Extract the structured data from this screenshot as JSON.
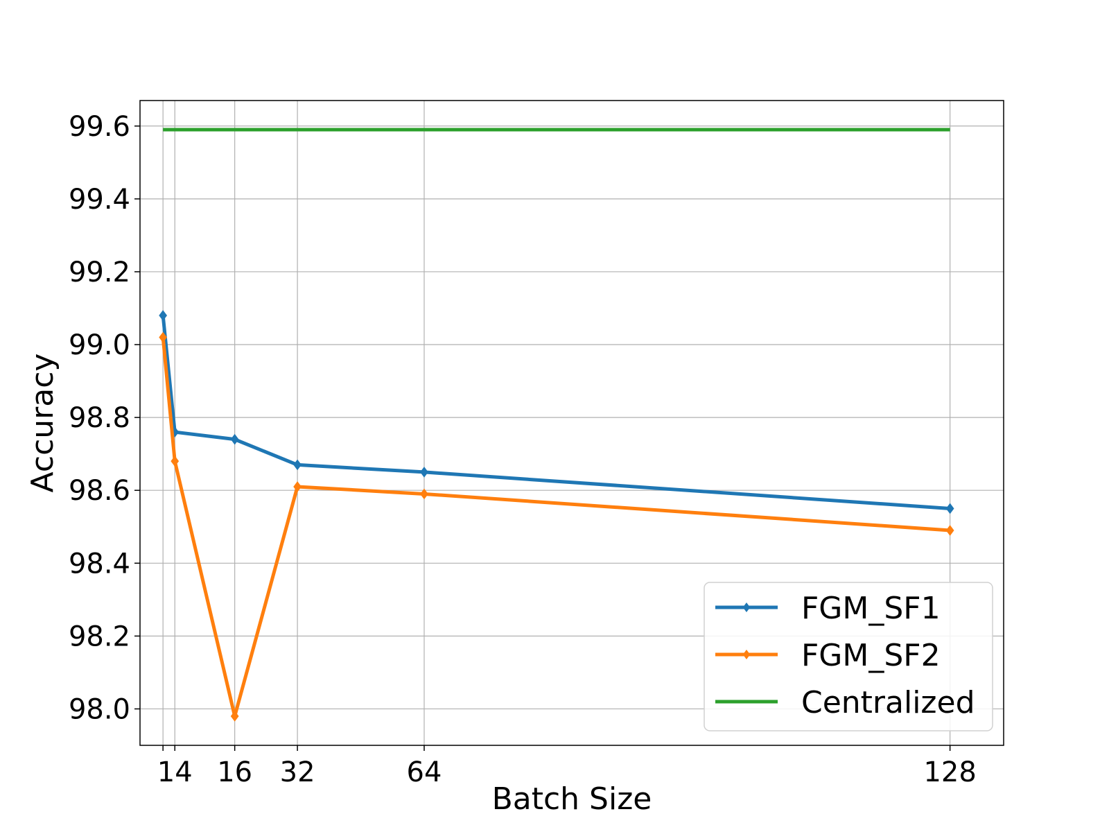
{
  "chart_data": {
    "type": "line",
    "title": "",
    "xlabel": "Batch Size",
    "ylabel": "Accuracy",
    "ylim": [
      97.9,
      99.67
    ],
    "yticks": [
      98.0,
      98.2,
      98.4,
      98.6,
      98.8,
      99.0,
      99.2,
      99.4,
      99.6
    ],
    "ytick_labels": [
      "98.0",
      "98.2",
      "98.4",
      "98.6",
      "98.8",
      "99.0",
      "99.2",
      "99.4",
      "99.6"
    ],
    "xticks": [
      14,
      16,
      32,
      64,
      128
    ],
    "xtick_labels": [
      "14",
      "16",
      "32",
      "64",
      "128"
    ],
    "grid": true,
    "legend_position": "lower-right",
    "series": [
      {
        "name": "FGM_SF1",
        "color": "#1f77b4",
        "marker": "diamond",
        "points": [
          {
            "x": 12,
            "y": 99.08
          },
          {
            "x": 14,
            "y": 98.76
          },
          {
            "x": 16,
            "y": 98.74
          },
          {
            "x": 32,
            "y": 98.67
          },
          {
            "x": 64,
            "y": 98.65
          },
          {
            "x": 128,
            "y": 98.55
          }
        ]
      },
      {
        "name": "FGM_SF2",
        "color": "#ff7f0e",
        "marker": "diamond",
        "points": [
          {
            "x": 12,
            "y": 99.02
          },
          {
            "x": 14,
            "y": 98.68
          },
          {
            "x": 16,
            "y": 97.98
          },
          {
            "x": 32,
            "y": 98.61
          },
          {
            "x": 64,
            "y": 98.59
          },
          {
            "x": 128,
            "y": 98.49
          }
        ]
      },
      {
        "name": "Centralized",
        "color": "#2ca02c",
        "marker": "none",
        "points": [
          {
            "x": 12,
            "y": 99.59
          },
          {
            "x": 128,
            "y": 99.59
          }
        ]
      }
    ]
  }
}
